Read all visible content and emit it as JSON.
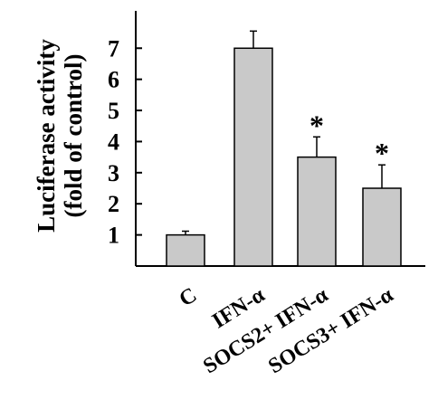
{
  "chart_data": {
    "type": "bar",
    "title": "",
    "xlabel": "",
    "ylabel_lines": [
      "Luciferase activity",
      "(fold of control)"
    ],
    "categories": [
      "C",
      "IFN-α",
      "SOCS2+ IFN-α",
      "SOCS3+ IFN-α"
    ],
    "values": [
      1.0,
      7.0,
      3.5,
      2.5
    ],
    "errors": [
      0.12,
      0.55,
      0.65,
      0.75
    ],
    "annotations": [
      "",
      "",
      "*",
      "*"
    ],
    "ylim": [
      0,
      8.2
    ],
    "yticks": [
      1,
      2,
      3,
      4,
      5,
      6,
      7
    ],
    "ytick_labels": [
      "1",
      "2",
      "3",
      "4",
      "5",
      "6",
      "7"
    ],
    "grid": false,
    "legend": "none",
    "bar_color": "#c9c9c9",
    "edge_color": "#000000"
  }
}
